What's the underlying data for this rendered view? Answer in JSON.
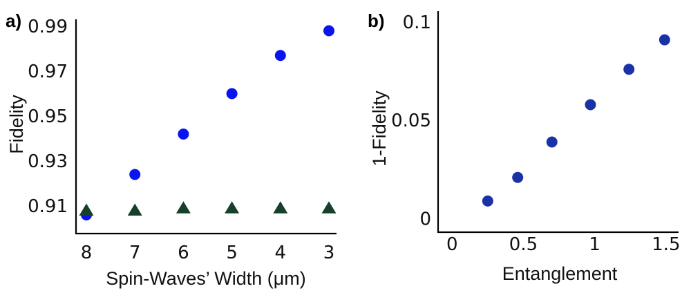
{
  "chart_data": [
    {
      "panel_label": "a)",
      "type": "scatter",
      "xlabel": "Spin-Waves’ Width (μm)",
      "ylabel": "Fidelity",
      "x_reversed": true,
      "xlim": [
        8.1,
        3
      ],
      "ylim": [
        0.902,
        0.99
      ],
      "x_ticks": [
        8,
        7,
        6,
        5,
        4,
        3
      ],
      "y_ticks": [
        0.91,
        0.93,
        0.95,
        0.97,
        0.99
      ],
      "series": [
        {
          "marker": "circle",
          "color": "#0a14f0",
          "x": [
            8,
            7,
            6,
            5,
            4,
            3
          ],
          "y": [
            0.906,
            0.924,
            0.942,
            0.96,
            0.977,
            0.988
          ]
        },
        {
          "marker": "triangle",
          "color": "#16402a",
          "x": [
            8,
            7,
            6,
            5,
            4,
            3
          ],
          "y": [
            0.908,
            0.908,
            0.909,
            0.909,
            0.909,
            0.909
          ]
        }
      ]
    },
    {
      "panel_label": "b)",
      "type": "scatter",
      "xlabel": "Entanglement",
      "ylabel": "1-Fidelity",
      "xlim": [
        -0.04,
        1.52
      ],
      "ylim": [
        -0.003,
        0.1
      ],
      "x_ticks": [
        0,
        0.5,
        1,
        1.5
      ],
      "y_ticks": [
        0,
        0.05,
        0.1
      ],
      "series": [
        {
          "marker": "circle",
          "color": "#1b31a6",
          "x": [
            0.25,
            0.46,
            0.7,
            0.97,
            1.24,
            1.49
          ],
          "y": [
            0.009,
            0.021,
            0.039,
            0.058,
            0.076,
            0.091
          ]
        }
      ]
    }
  ]
}
